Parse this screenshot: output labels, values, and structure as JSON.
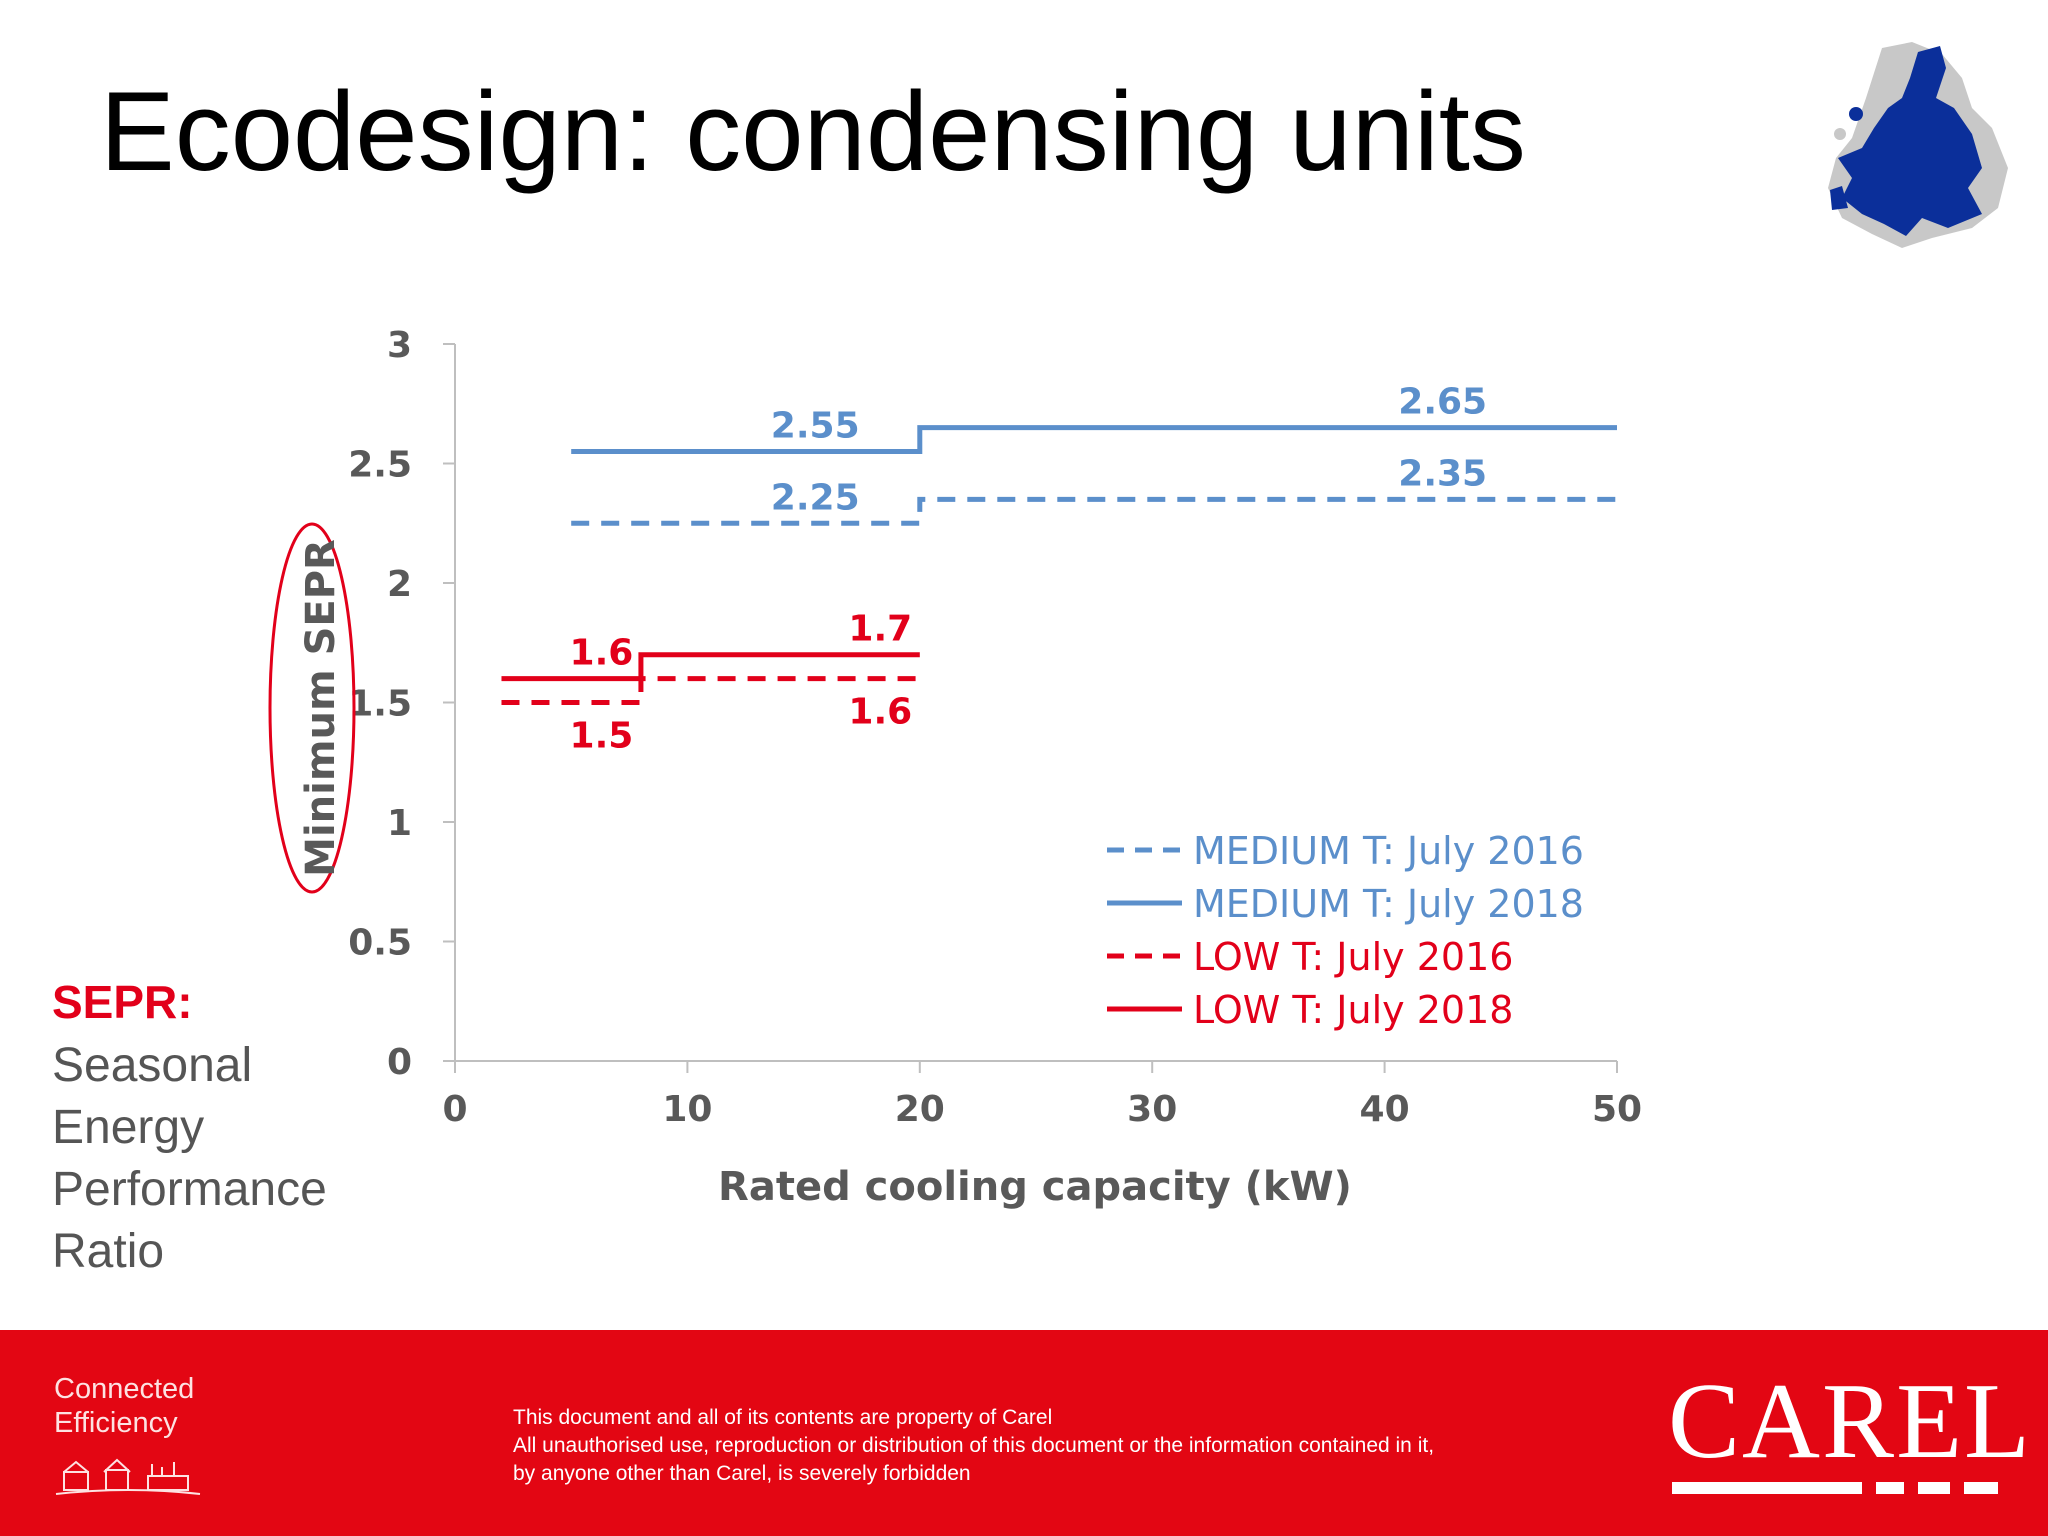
{
  "title": "Ecodesign: condensing units",
  "eu_map_icon": "eu-map-icon",
  "colors": {
    "blue": "#5b8fcb",
    "red": "#e2001a",
    "footer": "#e30613",
    "axis": "#595959"
  },
  "chart_data": {
    "type": "line",
    "xlabel": "Rated cooling capacity (kW)",
    "ylabel": "Minimum SEPR",
    "xlim": [
      0,
      50
    ],
    "ylim": [
      0,
      3
    ],
    "x_ticks": [
      "0",
      "10",
      "20",
      "30",
      "40",
      "50"
    ],
    "y_ticks": [
      "0",
      "0.5",
      "1",
      "1.5",
      "2",
      "2.5",
      "3"
    ],
    "grid": false,
    "legend_position": "bottom-right",
    "series": [
      {
        "name": "MEDIUM T: July 2016",
        "color": "#5b8fcb",
        "style": "dashed",
        "segments": [
          {
            "x": [
              5,
              20
            ],
            "y": 2.25,
            "label": "2.25"
          },
          {
            "x": [
              20,
              50
            ],
            "y": 2.35,
            "label": "2.35"
          }
        ]
      },
      {
        "name": "MEDIUM T: July 2018",
        "color": "#5b8fcb",
        "style": "solid",
        "segments": [
          {
            "x": [
              5,
              20
            ],
            "y": 2.55,
            "label": "2.55"
          },
          {
            "x": [
              20,
              50
            ],
            "y": 2.65,
            "label": "2.65"
          }
        ]
      },
      {
        "name": "LOW T: July 2016",
        "color": "#e2001a",
        "style": "dashed",
        "segments": [
          {
            "x": [
              2,
              8
            ],
            "y": 1.5,
            "label": "1.5"
          },
          {
            "x": [
              8,
              20
            ],
            "y": 1.6,
            "label": "1.6"
          }
        ]
      },
      {
        "name": "LOW T: July 2018",
        "color": "#e2001a",
        "style": "solid",
        "segments": [
          {
            "x": [
              2,
              8
            ],
            "y": 1.6,
            "label": "1.6"
          },
          {
            "x": [
              8,
              20
            ],
            "y": 1.7,
            "label": "1.7"
          }
        ]
      }
    ]
  },
  "sepr_note": {
    "heading": "SEPR:",
    "lines": [
      "Seasonal",
      "Energy",
      "Performance",
      "Ratio"
    ]
  },
  "footer": {
    "tagline_line1": "Connected",
    "tagline_line2": "Efficiency",
    "disclaimer_line1": "This document and all of its contents are property of Carel",
    "disclaimer_line2": "All unauthorised use, reproduction or distribution of this document or the information contained in it,",
    "disclaimer_line3": "by anyone other than Carel, is severely forbidden",
    "logo_text": "CAREL"
  }
}
